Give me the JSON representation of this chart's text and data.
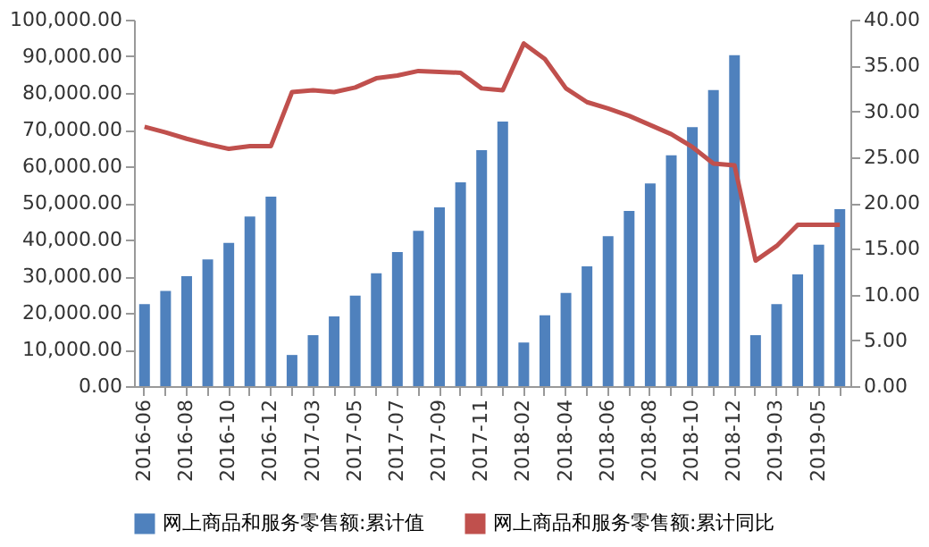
{
  "chart_data": {
    "type": "bar",
    "categories": [
      "2016-06",
      null,
      "2016-08",
      null,
      "2016-10",
      null,
      "2016-12",
      null,
      "2017-03",
      null,
      "2017-05",
      null,
      "2017-07",
      null,
      "2017-09",
      null,
      "2017-11",
      null,
      "2018-02",
      null,
      "2018-04",
      null,
      "2018-06",
      null,
      "2018-08",
      null,
      "2018-10",
      null,
      "2018-12",
      null,
      "2019-03",
      null,
      "2019-05",
      null
    ],
    "series": [
      {
        "name": "网上商品和服务零售额:累计值",
        "color": "#4f81bd",
        "values": [
          22400,
          26000,
          30000,
          34600,
          39100,
          46300,
          51700,
          8500,
          13900,
          19000,
          24700,
          30800,
          36600,
          42400,
          48800,
          55600,
          64400,
          72200,
          11900,
          19300,
          25400,
          32700,
          40900,
          47800,
          55300,
          63000,
          70700,
          80800,
          90300,
          13900,
          22400,
          30500,
          38600,
          48300
        ]
      },
      {
        "name": "网上商品和服务零售额:累计同比",
        "type": "line",
        "axis": "y2",
        "color": "#c0504d",
        "values": [
          28.3,
          27.7,
          27.0,
          26.4,
          25.9,
          26.2,
          26.2,
          32.1,
          32.3,
          32.1,
          32.6,
          33.6,
          33.9,
          34.4,
          34.3,
          34.2,
          32.5,
          32.3,
          37.4,
          35.7,
          32.5,
          31.0,
          30.3,
          29.5,
          28.5,
          27.5,
          26.1,
          24.3,
          24.1,
          13.7,
          15.3,
          17.6,
          17.6,
          17.6
        ]
      }
    ],
    "ylim": [
      0,
      100000
    ],
    "yticks": [
      {
        "value": 0,
        "label": "0.00"
      },
      {
        "value": 10000,
        "label": "10,000.00"
      },
      {
        "value": 20000,
        "label": "20,000.00"
      },
      {
        "value": 30000,
        "label": "30,000.00"
      },
      {
        "value": 40000,
        "label": "40,000.00"
      },
      {
        "value": 50000,
        "label": "50,000.00"
      },
      {
        "value": 60000,
        "label": "60,000.00"
      },
      {
        "value": 70000,
        "label": "70,000.00"
      },
      {
        "value": 80000,
        "label": "80,000.00"
      },
      {
        "value": 90000,
        "label": "90,000.00"
      },
      {
        "value": 100000,
        "label": "100,000.00"
      }
    ],
    "y2lim": [
      0,
      40
    ],
    "y2ticks": [
      {
        "value": 0,
        "label": "0.00"
      },
      {
        "value": 5,
        "label": "5.00"
      },
      {
        "value": 10,
        "label": "10.00"
      },
      {
        "value": 15,
        "label": "15.00"
      },
      {
        "value": 20,
        "label": "20.00"
      },
      {
        "value": 25,
        "label": "25.00"
      },
      {
        "value": 30,
        "label": "30.00"
      },
      {
        "value": 35,
        "label": "35.00"
      },
      {
        "value": 40,
        "label": "40.00"
      }
    ],
    "grid": false,
    "legend": "bottom"
  }
}
